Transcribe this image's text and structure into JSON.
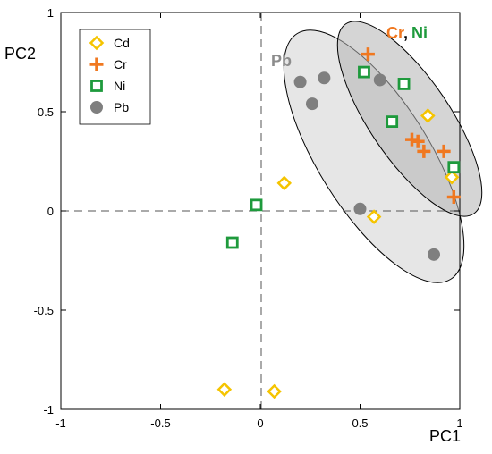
{
  "chart_data": {
    "type": "scatter",
    "xlabel": "PC1",
    "ylabel": "PC2",
    "xlim": [
      -1,
      1
    ],
    "ylim": [
      -1,
      1
    ],
    "xticks": [
      -1,
      -0.5,
      0,
      0.5,
      1
    ],
    "yticks": [
      -1,
      -0.5,
      0,
      0.5,
      1
    ],
    "xtick_labels": [
      "-1",
      "-0.5",
      "0",
      "0.5",
      "1"
    ],
    "ytick_labels": [
      "-1",
      "-0.5",
      "0",
      "0.5",
      "1"
    ],
    "grid": false,
    "reference_lines": "dashed lines at x=0 and y=0",
    "legend_position": "top-left",
    "series": [
      {
        "name": "Cd",
        "marker": "diamond-open",
        "color": "#F5C400",
        "points": [
          [
            0.12,
            0.14
          ],
          [
            0.57,
            -0.03
          ],
          [
            0.84,
            0.48
          ],
          [
            0.96,
            0.17
          ],
          [
            -0.18,
            -0.9
          ],
          [
            0.07,
            -0.91
          ]
        ]
      },
      {
        "name": "Cr",
        "marker": "plus",
        "color": "#F07820",
        "points": [
          [
            0.54,
            0.79
          ],
          [
            0.76,
            0.36
          ],
          [
            0.79,
            0.35
          ],
          [
            0.82,
            0.3
          ],
          [
            0.92,
            0.3
          ],
          [
            0.97,
            0.07
          ]
        ]
      },
      {
        "name": "Ni",
        "marker": "square-open",
        "color": "#1E9A3C",
        "points": [
          [
            0.52,
            0.7
          ],
          [
            0.72,
            0.64
          ],
          [
            0.66,
            0.45
          ],
          [
            0.97,
            0.22
          ],
          [
            -0.02,
            0.03
          ],
          [
            -0.14,
            -0.16
          ]
        ]
      },
      {
        "name": "Pb",
        "marker": "circle-filled",
        "color": "#7F7F7F",
        "points": [
          [
            0.2,
            0.65
          ],
          [
            0.32,
            0.67
          ],
          [
            0.26,
            0.54
          ],
          [
            0.6,
            0.66
          ],
          [
            0.5,
            0.01
          ],
          [
            0.87,
            -0.22
          ]
        ]
      }
    ],
    "annotations": [
      {
        "text": "Pb",
        "color": "#8C8C8C"
      },
      {
        "text": "Cr",
        "color": "#F07820"
      },
      {
        "text": ",",
        "color": "#000000"
      },
      {
        "text": "Ni",
        "color": "#1E9A3C"
      }
    ],
    "groups": [
      {
        "label": "Pb",
        "fill": "#E6E6E6"
      },
      {
        "label": "Cr, Ni",
        "fill": "#B3B3B3"
      }
    ]
  }
}
